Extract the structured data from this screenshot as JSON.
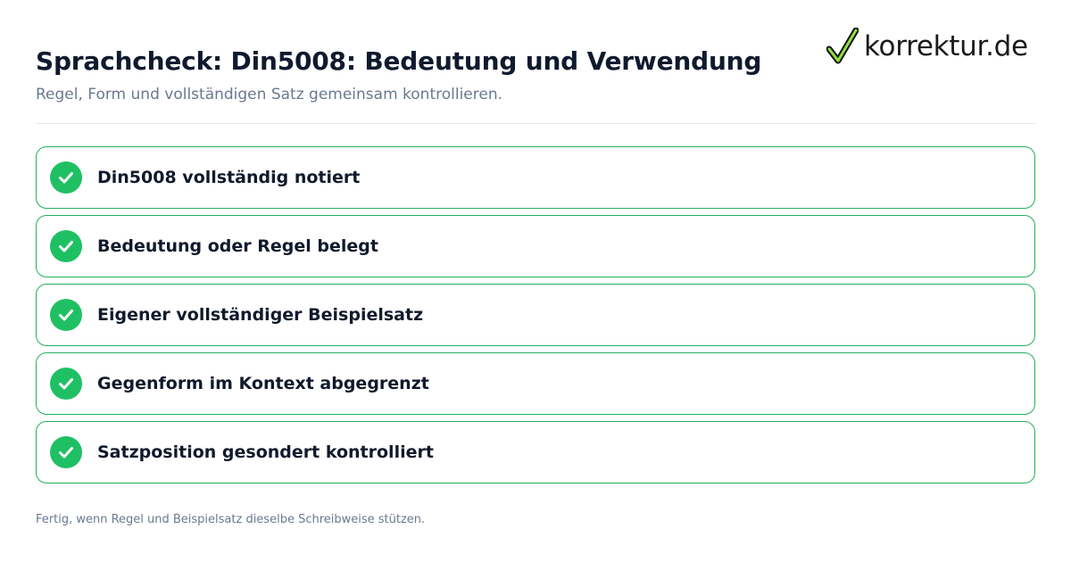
{
  "header": {
    "title": "Sprachcheck: Din5008: Bedeutung und Verwendung",
    "subtitle": "Regel, Form und vollständigen Satz gemeinsam kontrollieren."
  },
  "logo": {
    "icon": "checkmark-icon",
    "text": "korrektur.de"
  },
  "checklist": {
    "items": [
      {
        "label": "Din5008 vollständig notiert",
        "checked": true
      },
      {
        "label": "Bedeutung oder Regel belegt",
        "checked": true
      },
      {
        "label": "Eigener vollständiger Beispielsatz",
        "checked": true
      },
      {
        "label": "Gegenform im Kontext abgegrenzt",
        "checked": true
      },
      {
        "label": "Satzposition gesondert kontrolliert",
        "checked": true
      }
    ]
  },
  "footer": {
    "note": "Fertig, wenn Regel und Beispielsatz dieselbe Schreibweise stützen."
  },
  "colors": {
    "accent_green": "#1fc063",
    "border_green": "#22b05c",
    "title_text": "#101a2e",
    "muted_text": "#6b7890"
  }
}
